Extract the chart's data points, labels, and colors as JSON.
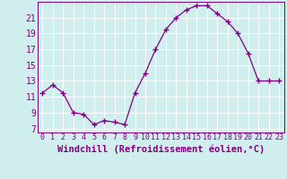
{
  "x": [
    0,
    1,
    2,
    3,
    4,
    5,
    6,
    7,
    8,
    9,
    10,
    11,
    12,
    13,
    14,
    15,
    16,
    17,
    18,
    19,
    20,
    21,
    22,
    23
  ],
  "y": [
    11.5,
    12.5,
    11.5,
    9.0,
    8.8,
    7.5,
    8.0,
    7.8,
    7.5,
    11.5,
    14.0,
    17.0,
    19.5,
    21.0,
    22.0,
    22.5,
    22.5,
    21.5,
    20.5,
    19.0,
    16.5,
    13.0,
    13.0,
    13.0
  ],
  "xlim": [
    -0.5,
    23.5
  ],
  "ylim": [
    6.5,
    23.0
  ],
  "yticks": [
    7,
    9,
    11,
    13,
    15,
    17,
    19,
    21
  ],
  "xticks": [
    0,
    1,
    2,
    3,
    4,
    5,
    6,
    7,
    8,
    9,
    10,
    11,
    12,
    13,
    14,
    15,
    16,
    17,
    18,
    19,
    20,
    21,
    22,
    23
  ],
  "xlabel": "Windchill (Refroidissement éolien,°C)",
  "line_color": "#800080",
  "marker": "+",
  "bg_color": "#d0eeee",
  "grid_color": "#b0d8d8",
  "tick_color": "#800080",
  "label_color": "#800080",
  "xlabel_fontsize": 7.5,
  "ytick_fontsize": 7,
  "xtick_fontsize": 6.0
}
